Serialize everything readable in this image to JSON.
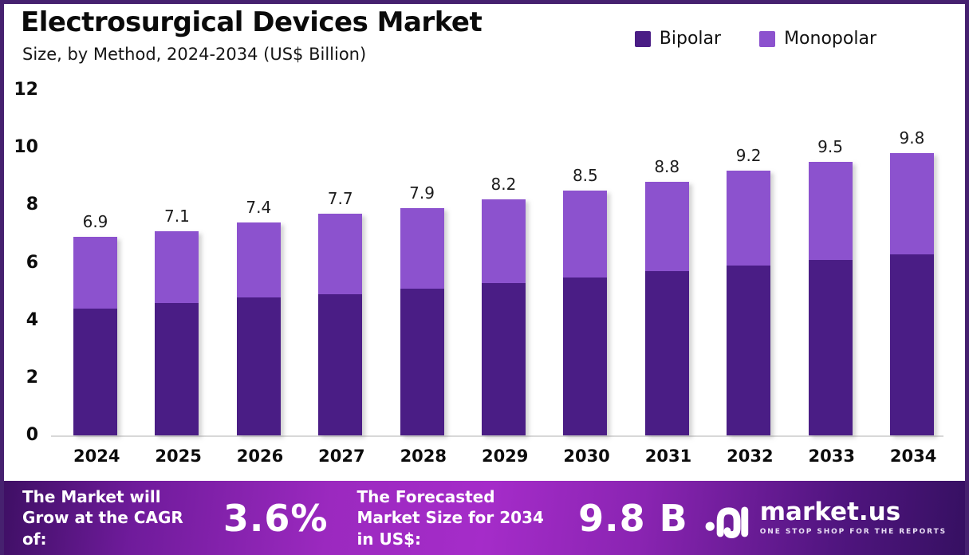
{
  "header": {
    "title": "Electrosurgical Devices Market",
    "subtitle": "Size, by Method, 2024-2034 (US$ Billion)"
  },
  "legend": [
    {
      "label": "Bipolar",
      "color": "#4A1D85"
    },
    {
      "label": "Monopolar",
      "color": "#8C52CE"
    }
  ],
  "chart_data": {
    "type": "bar",
    "stacked": true,
    "title": "Electrosurgical Devices Market Size, by Method, 2024-2034 (US$ Billion)",
    "categories": [
      "2024",
      "2025",
      "2026",
      "2027",
      "2028",
      "2029",
      "2030",
      "2031",
      "2032",
      "2033",
      "2034"
    ],
    "series": [
      {
        "name": "Bipolar",
        "color": "#4A1D85",
        "values": [
          4.4,
          4.6,
          4.8,
          4.9,
          5.1,
          5.3,
          5.5,
          5.7,
          5.9,
          6.1,
          6.3
        ]
      },
      {
        "name": "Monopolar",
        "color": "#8C52CE",
        "values": [
          2.5,
          2.5,
          2.6,
          2.8,
          2.8,
          2.9,
          3.0,
          3.1,
          3.3,
          3.4,
          3.5
        ]
      }
    ],
    "totals": [
      6.9,
      7.1,
      7.4,
      7.7,
      7.9,
      8.2,
      8.5,
      8.8,
      9.2,
      9.5,
      9.8
    ],
    "value_labels": [
      "6.9",
      "7.1",
      "7.4",
      "7.7",
      "7.9",
      "8.2",
      "8.5",
      "8.8",
      "9.2",
      "9.5",
      "9.8"
    ],
    "xlabel": "",
    "ylabel": "",
    "ylim": [
      0,
      12
    ],
    "yticks": [
      0,
      2,
      4,
      6,
      8,
      10,
      12
    ],
    "grid": false,
    "legend_position": "top-right"
  },
  "footer": {
    "cagr_label": "The Market will Grow at the CAGR of:",
    "cagr_value": "3.6%",
    "forecast_label": "The Forecasted Market Size for 2034 in US$:",
    "forecast_value": "9.8 B",
    "brand": {
      "name": "market.us",
      "tagline": "ONE STOP SHOP FOR THE REPORTS"
    }
  },
  "colors": {
    "frame_border": "#46216F",
    "bipolar": "#4A1D85",
    "monopolar": "#8C52CE",
    "baseline": "#D8D8D8",
    "footer_gradient_bright": "#A52CC9",
    "footer_gradient_dark": "#3D0F63"
  }
}
